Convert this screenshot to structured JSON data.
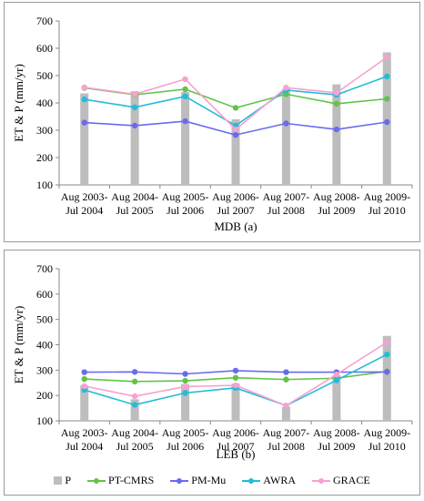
{
  "chart_data": [
    {
      "type": "bar+line",
      "title": "",
      "xlabel": "MDB (a)",
      "ylabel": "ET & P (mm/yr)",
      "ylim": [
        100,
        700
      ],
      "yticks": [
        "100",
        "200",
        "300",
        "400",
        "500",
        "600",
        "700"
      ],
      "categories": [
        [
          "Aug 2003-",
          "Jul 2004"
        ],
        [
          "Aug 2004-",
          "Jul 2005"
        ],
        [
          "Aug 2005-",
          "Jul 2006"
        ],
        [
          "Aug 2006-",
          "Jul 2007"
        ],
        [
          "Aug 2007-",
          "Jul 2008"
        ],
        [
          "Aug 2008-",
          "Jul 2009"
        ],
        [
          "Aug 2009-",
          "Jul 2010"
        ]
      ],
      "bars": {
        "name": "P",
        "values": [
          435,
          443,
          440,
          340,
          452,
          468,
          585
        ]
      },
      "series": [
        {
          "name": "PT-CMRS",
          "values": [
            455,
            430,
            450,
            382,
            432,
            397,
            415
          ]
        },
        {
          "name": "PM-Mu",
          "values": [
            328,
            317,
            333,
            283,
            325,
            303,
            330
          ]
        },
        {
          "name": "AWRA",
          "values": [
            413,
            384,
            424,
            317,
            447,
            430,
            497
          ]
        },
        {
          "name": "GRACE",
          "values": [
            457,
            432,
            487,
            303,
            456,
            437,
            567
          ]
        }
      ]
    },
    {
      "type": "bar+line",
      "title": "",
      "xlabel": "LEB (b)",
      "ylabel": "ET & P (mm/yr)",
      "ylim": [
        100,
        700
      ],
      "yticks": [
        "100",
        "200",
        "300",
        "400",
        "500",
        "600",
        "700"
      ],
      "categories": [
        [
          "Aug 2003-",
          "Jul 2004"
        ],
        [
          "Aug 2004-",
          "Jul 2005"
        ],
        [
          "Aug 2005-",
          "Jul 2006"
        ],
        [
          "Aug 2006-",
          "Jul 2007"
        ],
        [
          "Aug 2007-",
          "Jul 2008"
        ],
        [
          "Aug 2008-",
          "Jul 2009"
        ],
        [
          "Aug 2009-",
          "Jul 2010"
        ]
      ],
      "bars": {
        "name": "P",
        "values": [
          240,
          185,
          245,
          247,
          155,
          280,
          435
        ]
      },
      "series": [
        {
          "name": "PT-CMRS",
          "values": [
            265,
            255,
            258,
            270,
            263,
            268,
            295
          ]
        },
        {
          "name": "PM-Mu",
          "values": [
            292,
            293,
            285,
            298,
            292,
            292,
            293
          ]
        },
        {
          "name": "AWRA",
          "values": [
            222,
            163,
            210,
            230,
            160,
            260,
            362
          ]
        },
        {
          "name": "GRACE",
          "values": [
            237,
            197,
            235,
            240,
            160,
            283,
            410
          ]
        }
      ]
    }
  ],
  "legend": {
    "items": [
      {
        "label": "P",
        "kind": "bar",
        "color": "#bdbdbd"
      },
      {
        "label": "PT-CMRS",
        "kind": "line",
        "color": "#62c348"
      },
      {
        "label": "PM-Mu",
        "kind": "line",
        "color": "#6a6af0"
      },
      {
        "label": "AWRA",
        "kind": "line",
        "color": "#22bcd8"
      },
      {
        "label": "GRACE",
        "kind": "line",
        "color": "#f8a0d2"
      }
    ]
  },
  "colors": {
    "P": "#bdbdbd",
    "PT-CMRS": "#62c348",
    "PM-Mu": "#6a6af0",
    "AWRA": "#22bcd8",
    "GRACE": "#f8a0d2"
  }
}
